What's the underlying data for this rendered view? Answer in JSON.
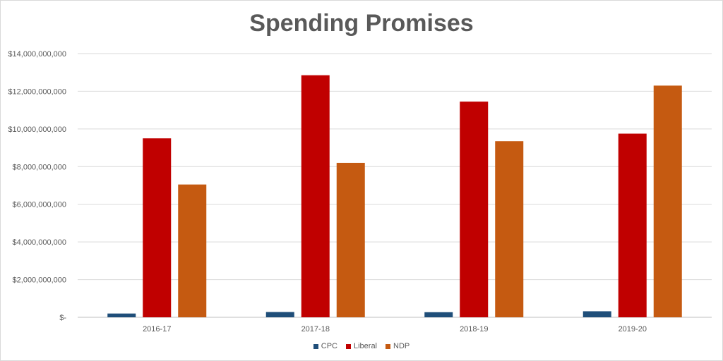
{
  "chart_data": {
    "type": "bar",
    "title": "Spending Promises",
    "xlabel": "",
    "ylabel": "",
    "categories": [
      "2016-17",
      "2017-18",
      "2018-19",
      "2019-20"
    ],
    "series": [
      {
        "name": "CPC",
        "color": "#1f4e79",
        "values": [
          200000000,
          280000000,
          270000000,
          320000000
        ]
      },
      {
        "name": "Liberal",
        "color": "#c00000",
        "values": [
          9500000000,
          12850000000,
          11450000000,
          9750000000
        ]
      },
      {
        "name": "NDP",
        "color": "#c55a11",
        "values": [
          7050000000,
          8200000000,
          9350000000,
          12300000000
        ]
      }
    ],
    "ylim": [
      0,
      14000000000
    ],
    "yticks": [
      0,
      2000000000,
      4000000000,
      6000000000,
      8000000000,
      10000000000,
      12000000000,
      14000000000
    ],
    "ytick_labels": [
      "$-",
      "$2,000,000,000",
      "$4,000,000,000",
      "$6,000,000,000",
      "$8,000,000,000",
      "$10,000,000,000",
      "$12,000,000,000",
      "$14,000,000,000"
    ],
    "grid": true,
    "legend_position": "bottom"
  }
}
